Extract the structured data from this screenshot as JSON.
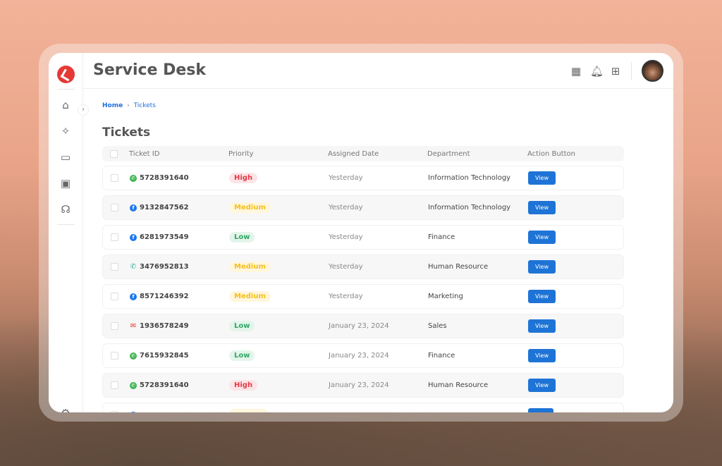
{
  "app": {
    "title": "Service Desk"
  },
  "breadcrumb": {
    "home": "Home",
    "separator": "›",
    "current": "Tickets"
  },
  "page_title": "Tickets",
  "sidebar": {
    "items": [
      {
        "icon": "home-icon",
        "glyph": "⌂"
      },
      {
        "icon": "sparkle-icon",
        "glyph": "✧"
      },
      {
        "icon": "chat-icon",
        "glyph": "▭"
      },
      {
        "icon": "briefcase-icon",
        "glyph": "▣"
      },
      {
        "icon": "headset-icon",
        "glyph": "☊"
      }
    ],
    "bottom_icon": "settings-icon",
    "toggle_glyph": "›"
  },
  "header_icons": [
    {
      "icon": "calendar-icon",
      "glyph": "▦"
    },
    {
      "icon": "bell-icon",
      "glyph": "🔔︎"
    },
    {
      "icon": "apps-grid-icon",
      "glyph": "⊞"
    }
  ],
  "table": {
    "columns": [
      "Ticket ID",
      "Priority",
      "Assigned Date",
      "Department",
      "Action Button"
    ],
    "rows": [
      {
        "channel": "whatsapp",
        "id": "5728391640",
        "priority": "High",
        "date": "Yesterday",
        "department": "Information Technology",
        "action": "View"
      },
      {
        "channel": "facebook",
        "id": "9132847562",
        "priority": "Medium",
        "date": "Yesterday",
        "department": "Information Technology",
        "action": "View"
      },
      {
        "channel": "facebook",
        "id": "6281973549",
        "priority": "Low",
        "date": "Yesterday",
        "department": "Finance",
        "action": "View"
      },
      {
        "channel": "phone",
        "id": "3476952813",
        "priority": "Medium",
        "date": "Yesterday",
        "department": "Human Resource",
        "action": "View"
      },
      {
        "channel": "facebook",
        "id": "8571246392",
        "priority": "Medium",
        "date": "Yesterday",
        "department": "Marketing",
        "action": "View"
      },
      {
        "channel": "email",
        "id": "1936578249",
        "priority": "Low",
        "date": "January 23, 2024",
        "department": "Sales",
        "action": "View"
      },
      {
        "channel": "whatsapp",
        "id": "7615932845",
        "priority": "Low",
        "date": "January 23, 2024",
        "department": "Finance",
        "action": "View"
      },
      {
        "channel": "whatsapp",
        "id": "5728391640",
        "priority": "High",
        "date": "January 23, 2024",
        "department": "Human Resource",
        "action": "View"
      }
    ]
  },
  "colors": {
    "accent": "#1e74d6",
    "logo": "#e53935",
    "high": "#e53945",
    "medium": "#f4c020",
    "low": "#2ea866",
    "whatsapp": "#3fb34f",
    "facebook": "#1877f2",
    "phone": "#2bb5a0",
    "email": "#e53935"
  }
}
